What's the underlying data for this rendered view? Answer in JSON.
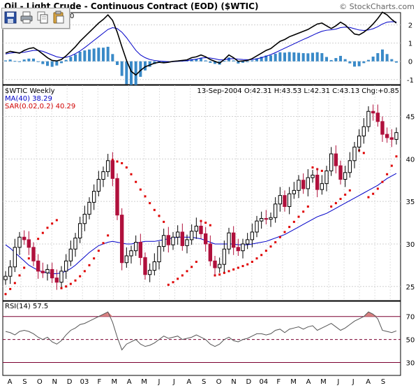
{
  "header": {
    "title": "Oil - Light Crude - Continuous Contract (EOD) ($WTIC)",
    "copyright": "© StockCharts.com"
  },
  "toolbar": {
    "icons": [
      "save-icon",
      "print-icon",
      "copy-icon",
      "paste-icon"
    ]
  },
  "price_panel": {
    "symbol_label": "$WTIC Weekly",
    "ma_label": "MA(40) 38.29",
    "sar_label": "SAR(0.02,0.2) 40.29",
    "quote": "13-Sep-2004 O:42.31 H:43.53 L:42.31 C:43.13 Chg:+0.85"
  },
  "macd_panel": {
    "label_fragment": "0"
  },
  "rsi_panel": {
    "label": "RSI(14) 57.5"
  },
  "colors": {
    "up_bar": "#000000",
    "down_bar": "#b0103c",
    "ma_line": "#0000c8",
    "sar_dots": "#e00000",
    "histogram": "#3a8ac8",
    "rsi_band": "#7a0030",
    "rsi_fill": "#d88080"
  },
  "chart_data": [
    {
      "type": "line",
      "panel": "macd",
      "series_labels": [],
      "y_ticks": [
        "2",
        "1",
        "0",
        "-1"
      ],
      "ylim": [
        -1.2,
        2.6
      ],
      "macd_line": [
        0.45,
        0.55,
        0.5,
        0.45,
        0.6,
        0.7,
        0.75,
        0.6,
        0.4,
        0.2,
        0.05,
        0.02,
        0.1,
        0.3,
        0.55,
        0.8,
        1.1,
        1.35,
        1.6,
        1.85,
        2.1,
        2.3,
        2.55,
        2.25,
        1.6,
        0.8,
        0.05,
        -0.55,
        -0.75,
        -0.5,
        -0.3,
        -0.2,
        -0.1,
        -0.05,
        -0.08,
        -0.05,
        0.0,
        0.02,
        0.05,
        0.08,
        0.2,
        0.25,
        0.35,
        0.25,
        0.1,
        0.0,
        -0.1,
        0.1,
        0.35,
        0.2,
        0.0,
        0.02,
        0.05,
        0.15,
        0.3,
        0.45,
        0.6,
        0.7,
        0.9,
        1.1,
        1.2,
        1.35,
        1.45,
        1.55,
        1.65,
        1.75,
        1.9,
        2.05,
        2.1,
        1.95,
        1.8,
        1.95,
        2.15,
        2.0,
        1.75,
        1.5,
        1.45,
        1.6,
        1.8,
        2.05,
        2.35,
        2.7,
        2.55,
        2.3,
        2.1
      ],
      "signal_line": [
        0.4,
        0.45,
        0.48,
        0.48,
        0.5,
        0.55,
        0.6,
        0.6,
        0.55,
        0.45,
        0.35,
        0.25,
        0.2,
        0.22,
        0.3,
        0.42,
        0.57,
        0.75,
        0.95,
        1.15,
        1.35,
        1.55,
        1.75,
        1.85,
        1.8,
        1.6,
        1.3,
        0.95,
        0.6,
        0.35,
        0.2,
        0.1,
        0.05,
        0.02,
        0.0,
        -0.02,
        -0.02,
        0.0,
        0.02,
        0.04,
        0.08,
        0.12,
        0.18,
        0.2,
        0.18,
        0.14,
        0.08,
        0.08,
        0.14,
        0.15,
        0.12,
        0.1,
        0.09,
        0.1,
        0.14,
        0.2,
        0.28,
        0.37,
        0.48,
        0.6,
        0.72,
        0.84,
        0.96,
        1.08,
        1.2,
        1.31,
        1.43,
        1.55,
        1.65,
        1.71,
        1.73,
        1.77,
        1.85,
        1.88,
        1.86,
        1.79,
        1.72,
        1.7,
        1.72,
        1.79,
        1.9,
        2.05,
        2.15,
        2.18,
        2.17
      ],
      "histogram": [
        0.05,
        0.1,
        0.02,
        -0.03,
        0.1,
        0.15,
        0.15,
        0.0,
        -0.15,
        -0.25,
        -0.3,
        -0.23,
        -0.1,
        0.08,
        0.25,
        0.38,
        0.53,
        0.6,
        0.65,
        0.7,
        0.75,
        0.75,
        0.8,
        0.4,
        -0.2,
        -0.8,
        -1.25,
        -1.5,
        -1.35,
        -0.85,
        -0.5,
        -0.3,
        -0.15,
        -0.07,
        -0.08,
        -0.03,
        0.02,
        0.02,
        0.03,
        0.04,
        0.12,
        0.13,
        0.17,
        0.05,
        -0.08,
        -0.14,
        -0.18,
        0.02,
        0.21,
        0.05,
        -0.12,
        -0.08,
        -0.04,
        0.05,
        0.16,
        0.25,
        0.32,
        0.33,
        0.42,
        0.5,
        0.48,
        0.51,
        0.49,
        0.47,
        0.45,
        0.44,
        0.47,
        0.5,
        0.45,
        0.24,
        0.07,
        0.18,
        0.3,
        0.12,
        -0.11,
        -0.29,
        -0.27,
        -0.1,
        0.08,
        0.26,
        0.45,
        0.65,
        0.4,
        0.12,
        -0.07
      ]
    },
    {
      "type": "candlestick",
      "panel": "price",
      "y_ticks": [
        "45",
        "40",
        "35",
        "30",
        "25"
      ],
      "ylim": [
        23.5,
        48.5
      ],
      "x_labels": [
        "A",
        "S",
        "O",
        "N",
        "D",
        "03",
        "F",
        "M",
        "A",
        "M",
        "J",
        "J",
        "A",
        "S",
        "O",
        "N",
        "D",
        "04",
        "F",
        "M",
        "A",
        "M",
        "J",
        "J",
        "A",
        "S"
      ],
      "close": [
        26.2,
        27.3,
        29.6,
        30.8,
        30.5,
        29.6,
        28.0,
        26.8,
        26.6,
        27.0,
        26.0,
        25.5,
        26.8,
        28.0,
        29.4,
        30.7,
        32.4,
        33.5,
        34.9,
        36.2,
        37.6,
        38.5,
        39.8,
        37.7,
        33.4,
        27.8,
        28.6,
        29.2,
        30.2,
        28.4,
        26.4,
        26.9,
        27.9,
        29.7,
        31.0,
        29.9,
        30.8,
        31.4,
        29.8,
        30.5,
        31.5,
        32.1,
        31.2,
        30.0,
        28.0,
        27.2,
        27.6,
        29.4,
        31.3,
        29.6,
        29.2,
        30.0,
        30.5,
        31.4,
        32.7,
        33.0,
        32.9,
        33.1,
        34.7,
        35.7,
        34.4,
        35.9,
        36.3,
        37.5,
        36.5,
        37.8,
        38.1,
        36.4,
        37.1,
        38.6,
        40.6,
        39.2,
        37.6,
        38.4,
        39.8,
        41.4,
        42.7,
        43.8,
        45.6,
        45.4,
        44.4,
        42.9,
        42.5,
        42.3,
        43.1
      ],
      "ma40": [
        29.9,
        29.5,
        29.0,
        28.5,
        28.0,
        27.5,
        27.2,
        26.9,
        26.7,
        26.6,
        26.5,
        26.5,
        26.6,
        26.8,
        27.1,
        27.5,
        28.0,
        28.5,
        29.0,
        29.4,
        29.8,
        30.0,
        30.2,
        30.3,
        30.2,
        30.1,
        30.0,
        30.0,
        30.1,
        30.2,
        30.3,
        30.3,
        30.3,
        30.4,
        30.5,
        30.6,
        30.7,
        30.8,
        30.8,
        30.8,
        30.8,
        30.7,
        30.6,
        30.4,
        30.2,
        30.0,
        30.0,
        30.0,
        30.0,
        30.0,
        29.9,
        29.9,
        29.9,
        30.0,
        30.1,
        30.2,
        30.3,
        30.5,
        30.7,
        30.9,
        31.1,
        31.4,
        31.7,
        32.0,
        32.3,
        32.6,
        32.9,
        33.2,
        33.4,
        33.6,
        33.9,
        34.2,
        34.5,
        34.8,
        35.1,
        35.4,
        35.7,
        36.0,
        36.3,
        36.6,
        36.9,
        37.3,
        37.7,
        38.0,
        38.3
      ],
      "sar": [
        24.1,
        24.7,
        25.4,
        26.3,
        27.2,
        28.3,
        29.5,
        30.6,
        31.3,
        31.9,
        32.4,
        32.8,
        24.8,
        25.0,
        25.3,
        25.7,
        26.2,
        26.8,
        27.5,
        28.3,
        29.2,
        30.1,
        31.0,
        39.9,
        39.7,
        39.5,
        39.0,
        38.2,
        37.3,
        36.4,
        35.6,
        34.8,
        34.0,
        33.3,
        32.6,
        25.2,
        25.5,
        25.9,
        26.3,
        26.8,
        27.3,
        27.9,
        32.7,
        32.5,
        32.2,
        26.3,
        26.4,
        26.6,
        26.8,
        27.0,
        27.2,
        27.4,
        27.6,
        27.9,
        28.3,
        28.7,
        29.2,
        29.7,
        30.2,
        30.8,
        31.4,
        32.0,
        32.6,
        33.2,
        33.8,
        34.4,
        39.0,
        38.8,
        38.6,
        38.4,
        34.4,
        34.8,
        35.3,
        35.8,
        36.3,
        41.3,
        41.0,
        40.7,
        35.5,
        35.9,
        36.5,
        37.3,
        38.2,
        39.2,
        40.3
      ]
    },
    {
      "type": "line",
      "panel": "rsi",
      "y_ticks": [
        "70",
        "50",
        "30"
      ],
      "ylim": [
        20,
        82
      ],
      "overbought": 70,
      "oversold": 30,
      "values": [
        57,
        56,
        54,
        57,
        58,
        57,
        55,
        52,
        50,
        52,
        48,
        46,
        49,
        54,
        58,
        60,
        63,
        64,
        66,
        68,
        70,
        72,
        74,
        65,
        52,
        41,
        46,
        48,
        50,
        46,
        44,
        45,
        47,
        50,
        53,
        51,
        52,
        53,
        50,
        51,
        52,
        54,
        52,
        50,
        46,
        44,
        46,
        50,
        52,
        49,
        48,
        50,
        51,
        53,
        55,
        55,
        54,
        55,
        58,
        59,
        56,
        59,
        60,
        61,
        59,
        61,
        62,
        58,
        60,
        62,
        64,
        61,
        58,
        60,
        63,
        66,
        68,
        70,
        74,
        72,
        68,
        58,
        57,
        56,
        57.5
      ]
    }
  ]
}
